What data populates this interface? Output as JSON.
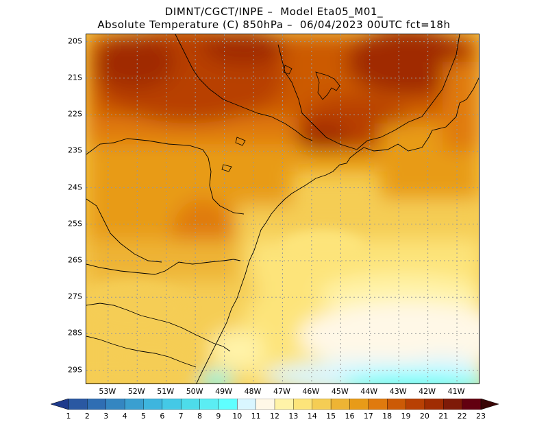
{
  "header": {
    "line1": "DIMNT/CGCT/INPE –  Model Eta05_M01_",
    "line2": "Absolute Temperature (C) 850hPa –  06/04/2023 00UTC fct=18h"
  },
  "map": {
    "lat_labels": [
      "20S",
      "21S",
      "22S",
      "23S",
      "24S",
      "25S",
      "26S",
      "27S",
      "28S",
      "29S"
    ],
    "lat_values": [
      -20,
      -21,
      -22,
      -23,
      -24,
      -25,
      -26,
      -27,
      -28,
      -29
    ],
    "lon_labels": [
      "53W",
      "52W",
      "51W",
      "50W",
      "49W",
      "48W",
      "47W",
      "46W",
      "45W",
      "44W",
      "43W",
      "42W",
      "41W"
    ],
    "lon_values": [
      -53,
      -52,
      -51,
      -50,
      -49,
      -48,
      -47,
      -46,
      -45,
      -44,
      -43,
      -42,
      -41
    ],
    "lat_range": [
      -29.4,
      -19.8
    ],
    "lon_range": [
      -53.75,
      -40.2
    ],
    "grid": "dotted",
    "field_regions": [
      {
        "level": 18,
        "note": "warm north core"
      },
      {
        "level": 11,
        "note": "coldest band far south-east"
      }
    ]
  },
  "colorbar": {
    "labels": [
      "1",
      "2",
      "3",
      "4",
      "5",
      "6",
      "7",
      "8",
      "9",
      "10",
      "11",
      "12",
      "13",
      "14",
      "15",
      "16",
      "17",
      "18",
      "19",
      "20",
      "21",
      "22",
      "23"
    ],
    "colors": [
      "#1e3a8c",
      "#2a58a2",
      "#2f6eb3",
      "#3486c1",
      "#3a9fd0",
      "#3eb5de",
      "#44c9e6",
      "#4ddcea",
      "#5bedf3",
      "#5fffff",
      "#d9f6ff",
      "#fff8e7",
      "#fff3a8",
      "#fde47a",
      "#f5cd54",
      "#eeb434",
      "#e89b18",
      "#e07a0e",
      "#cc5a06",
      "#b84004",
      "#a02c02",
      "#7e1a08",
      "#620010"
    ],
    "left_end_color": "#1e3a8c",
    "right_end_color": "#3a0606"
  }
}
